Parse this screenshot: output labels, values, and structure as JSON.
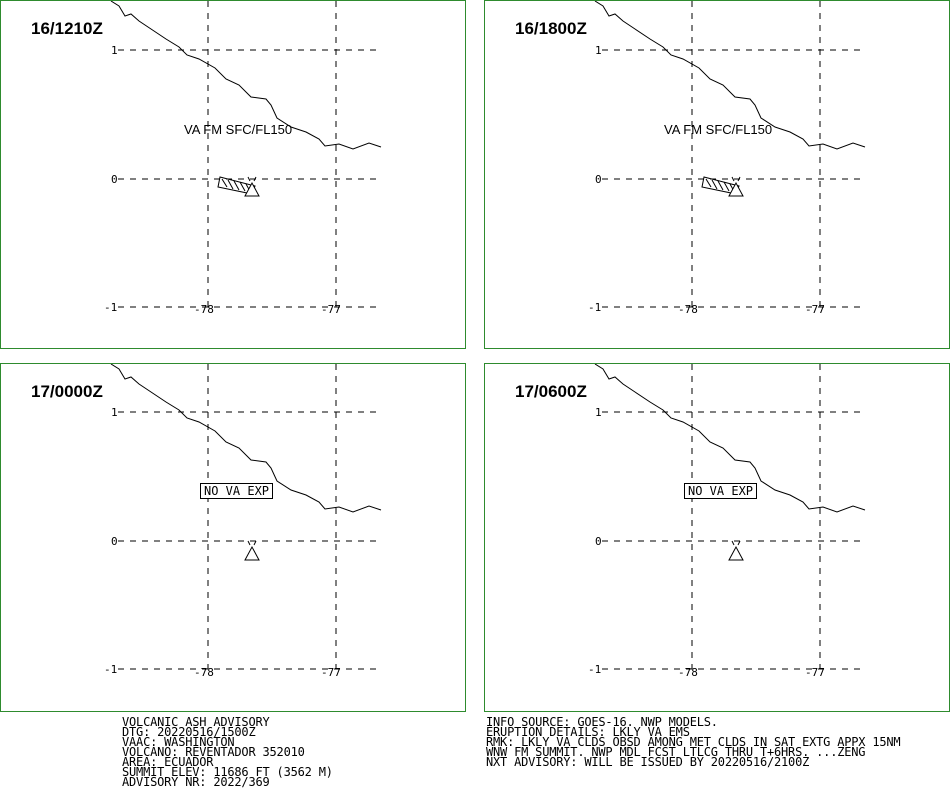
{
  "panels": [
    {
      "time": "16/1210Z",
      "label": "VA FM SFC/FL150",
      "no_va": false
    },
    {
      "time": "16/1800Z",
      "label": "VA FM SFC/FL150",
      "no_va": false
    },
    {
      "time": "17/0000Z",
      "label": "NO VA EXP",
      "no_va": true
    },
    {
      "time": "17/0600Z",
      "label": "NO VA EXP",
      "no_va": true
    }
  ],
  "map": {
    "lat_ticks": [
      "1",
      "0",
      "-1"
    ],
    "lon_ticks": [
      "-78",
      "-77"
    ]
  },
  "advisory_left": [
    "VOLCANIC ASH ADVISORY",
    "DTG: 20220516/1500Z",
    "VAAC: WASHINGTON",
    "VOLCANO: REVENTADOR 352010",
    "AREA: ECUADOR",
    "SUMMIT ELEV: 11686 FT (3562 M)",
    "ADVISORY NR: 2022/369"
  ],
  "advisory_right": [
    "INFO SOURCE: GOES-16. NWP MODELS.",
    "ERUPTION DETAILS: LKLY VA EMS",
    "RMK: LKLY VA CLDS OBSD AMONG MET CLDS IN SAT EXTG APPX 15NM",
    "WNW FM SUMMIT. NWP MDL FCST LTLCG THRU T+6HRS. ...ZENG",
    "NXT ADVISORY: WILL BE ISSUED BY 20220516/2100Z"
  ],
  "colors": {
    "frame": "#2e8b2e",
    "ink": "#000000"
  }
}
